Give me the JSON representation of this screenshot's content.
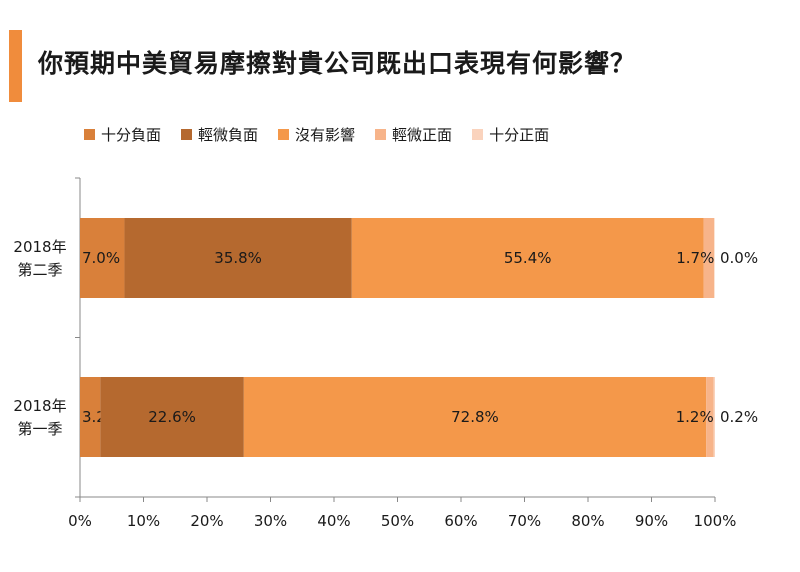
{
  "page": {
    "title": "你預期中美貿易摩擦對貴公司既出口表現有何影響？",
    "accent_color": "#f08c3c"
  },
  "chart_data": {
    "type": "bar",
    "orientation": "horizontal",
    "stacked": true,
    "title": "",
    "xlabel": "",
    "ylabel": "",
    "xlim": [
      0,
      100
    ],
    "x_ticks": [
      "0%",
      "10%",
      "20%",
      "30%",
      "40%",
      "50%",
      "60%",
      "70%",
      "80%",
      "90%",
      "100%"
    ],
    "categories": [
      [
        "2018年",
        "第二季"
      ],
      [
        "2018年",
        "第一季"
      ]
    ],
    "series": [
      {
        "name": "十分負面",
        "color": "#d9803a",
        "values": [
          7.0,
          3.2
        ],
        "labels": [
          "7.0%",
          "3.2%"
        ]
      },
      {
        "name": "輕微負面",
        "color": "#b5692f",
        "values": [
          35.8,
          22.6
        ],
        "labels": [
          "35.8%",
          "22.6%"
        ]
      },
      {
        "name": "沒有影響",
        "color": "#f4984a",
        "values": [
          55.4,
          72.8
        ],
        "labels": [
          "55.4%",
          "72.8%"
        ]
      },
      {
        "name": "輕微正面",
        "color": "#f7b48a",
        "values": [
          1.7,
          1.2
        ],
        "labels": [
          "1.7%",
          "1.2%"
        ]
      },
      {
        "name": "十分正面",
        "color": "#fad3bd",
        "values": [
          0.0,
          0.2
        ],
        "labels": [
          "0.0%",
          "0.2%"
        ]
      }
    ],
    "legend_position": "top",
    "grid": false
  }
}
